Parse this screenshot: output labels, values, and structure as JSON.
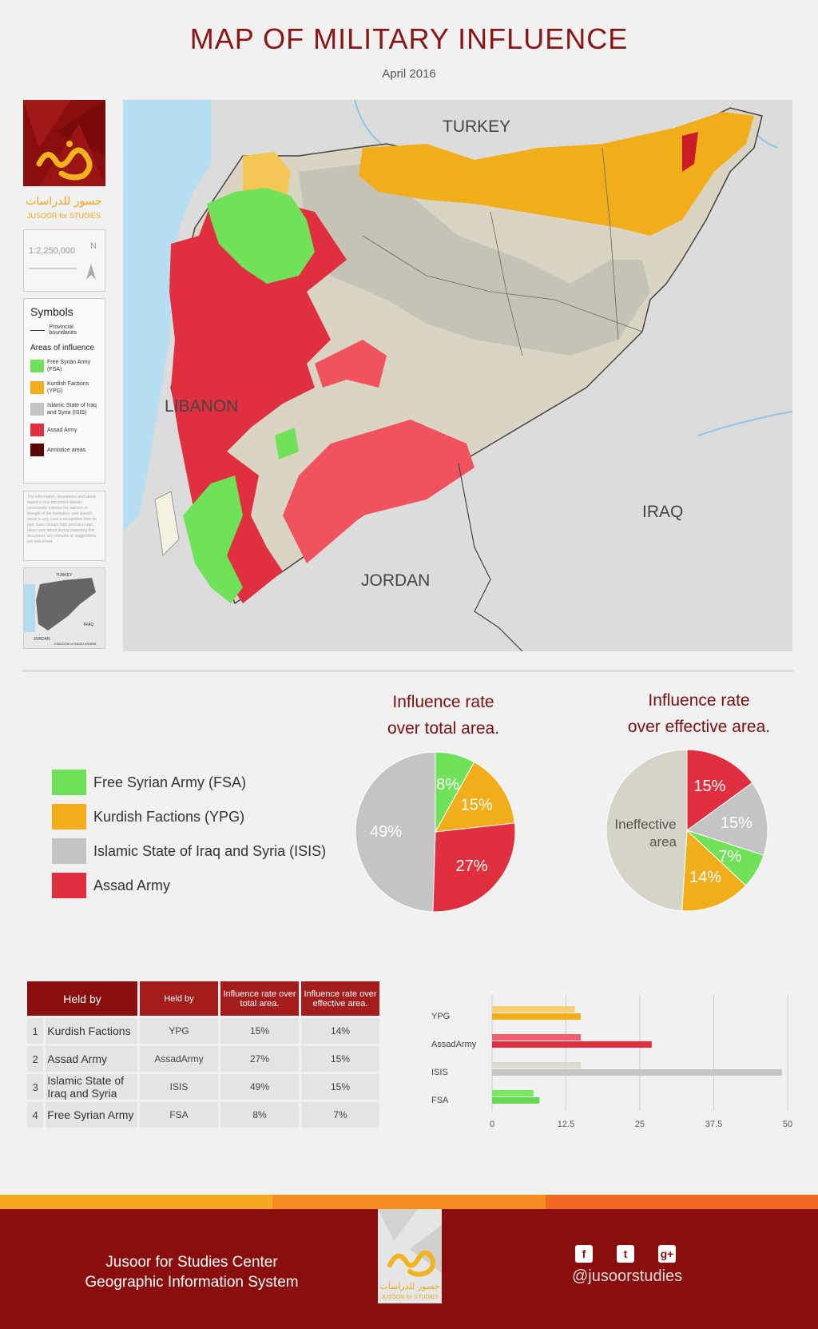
{
  "header": {
    "title": "MAP OF MILITARY INFLUENCE",
    "date": "April 2016"
  },
  "side_panel": {
    "logo_text_ar": "جسور للدراسات",
    "logo_text_en": "JUSOOR for STUDIES",
    "scale": "1:2,250,000",
    "north": "N",
    "symbols_title": "Symbols",
    "provincial_boundaries": "Provincial boundaries",
    "areas_title": "Areas of influence",
    "areas": [
      {
        "label": "Free Syrian Army (FSA)",
        "color": "#6fe25a"
      },
      {
        "label": "Kurdish Factions (YPG)",
        "color": "#f2ae1a"
      },
      {
        "label": "Islamic State of Iraq and Syria (ISIS)",
        "color": "#c4c4c4"
      },
      {
        "label": "Assad Army",
        "color": "#e0303f"
      },
      {
        "label": "Armistice areas",
        "color": "#5a0606"
      }
    ],
    "disclaimer": "The information, boundaries and labels stated in this document doesn't necessarily express the opinion or thought of the institution, and doesn't mean in any case a recognition from its part. Even though high precision was taken care about during preparing this document, any remarks or suggestions are welcomed.",
    "inset_labels": {
      "north": "TURKEY",
      "east": "IRAQ",
      "south": "JORDAN",
      "south_east": "KINGDOM of SAUDI ARABIA"
    }
  },
  "map_labels": {
    "turkey": "TURKEY",
    "lebanon": "LIBANON",
    "iraq": "IRAQ",
    "jordan": "JORDAN"
  },
  "legend": [
    {
      "label": "Free Syrian Army (FSA)",
      "color": "#6fe25a"
    },
    {
      "label": "Kurdish Factions (YPG)",
      "color": "#f2ae1a"
    },
    {
      "label": "Islamic State of Iraq and Syria (ISIS)",
      "color": "#c4c4c4"
    },
    {
      "label": "Assad Army",
      "color": "#e0303f"
    }
  ],
  "chart_data": [
    {
      "type": "pie",
      "title": "Influence rate over total area.",
      "slices": [
        {
          "label": "FSA",
          "value": 8,
          "color": "#6fe25a"
        },
        {
          "label": "YPG",
          "value": 15,
          "color": "#f2ae1a"
        },
        {
          "label": "Assad Army",
          "value": 27,
          "color": "#e0303f"
        },
        {
          "label": "ISIS",
          "value": 49,
          "color": "#c4c4c4"
        }
      ]
    },
    {
      "type": "pie",
      "title": "Influence rate over effective area.",
      "slices": [
        {
          "label": "Assad Army",
          "value": 15,
          "color": "#e0303f"
        },
        {
          "label": "ISIS",
          "value": 15,
          "color": "#c4c4c4"
        },
        {
          "label": "FSA",
          "value": 7,
          "color": "#6fe25a"
        },
        {
          "label": "YPG",
          "value": 14,
          "color": "#f2ae1a"
        },
        {
          "label": "Ineffective area",
          "value": 49,
          "color": "#d6d4c6"
        }
      ]
    },
    {
      "type": "bar",
      "categories": [
        "YPG",
        "AssadArmy",
        "ISIS",
        "FSA"
      ],
      "series": [
        {
          "values": [
            14,
            15,
            15,
            7
          ],
          "colors": [
            "#f8cf70",
            "#ef6170",
            "#dcdad0",
            "#7ae866"
          ]
        },
        {
          "values": [
            15,
            27,
            49,
            8
          ],
          "colors": [
            "#f2ae1a",
            "#e0303f",
            "#c4c4c4",
            "#5fdd4c"
          ]
        }
      ],
      "xlim": [
        0,
        50
      ],
      "xticks": [
        "0",
        "12.5",
        "25",
        "37.5",
        "50"
      ]
    }
  ],
  "pie1": {
    "title_line1": "Influence rate",
    "title_line2": "over total area.",
    "labels": [
      "8%",
      "15%",
      "27%",
      "49%"
    ]
  },
  "pie2": {
    "title_line1": "Influence rate",
    "title_line2": "over effective area.",
    "labels": [
      "15%",
      "15%",
      "7%",
      "14%"
    ],
    "ineffective_line1": "Ineffective",
    "ineffective_line2": "area"
  },
  "table": {
    "headers": [
      "Held by",
      "Held by",
      "Influence rate over total area.",
      "Influence rate over effective area."
    ],
    "rows": [
      {
        "n": "1",
        "name": "Kurdish Factions",
        "code": "YPG",
        "total": "15%",
        "effective": "14%"
      },
      {
        "n": "2",
        "name": "Assad Army",
        "code": "AssadArmy",
        "total": "27%",
        "effective": "15%"
      },
      {
        "n": "3",
        "name": "Islamic State of Iraq and Syria",
        "code": "ISIS",
        "total": "49%",
        "effective": "15%"
      },
      {
        "n": "4",
        "name": "Free Syrian Army",
        "code": "FSA",
        "total": "8%",
        "effective": "7%"
      }
    ]
  },
  "footer": {
    "line1": "Jusoor for Studies Center",
    "line2": "Geographic Information System",
    "handle": "@jusoorstudies",
    "social": [
      "facebook-icon",
      "twitter-icon",
      "google-plus-icon"
    ],
    "logo_text_ar": "جسور للدراسات",
    "logo_text_en": "JUSOOR for STUDIES"
  },
  "colors": {
    "brand": "#8b0e0e",
    "title": "#8b1414",
    "stripe": [
      "#f7a823",
      "#f48c1f",
      "#f06a22"
    ]
  }
}
